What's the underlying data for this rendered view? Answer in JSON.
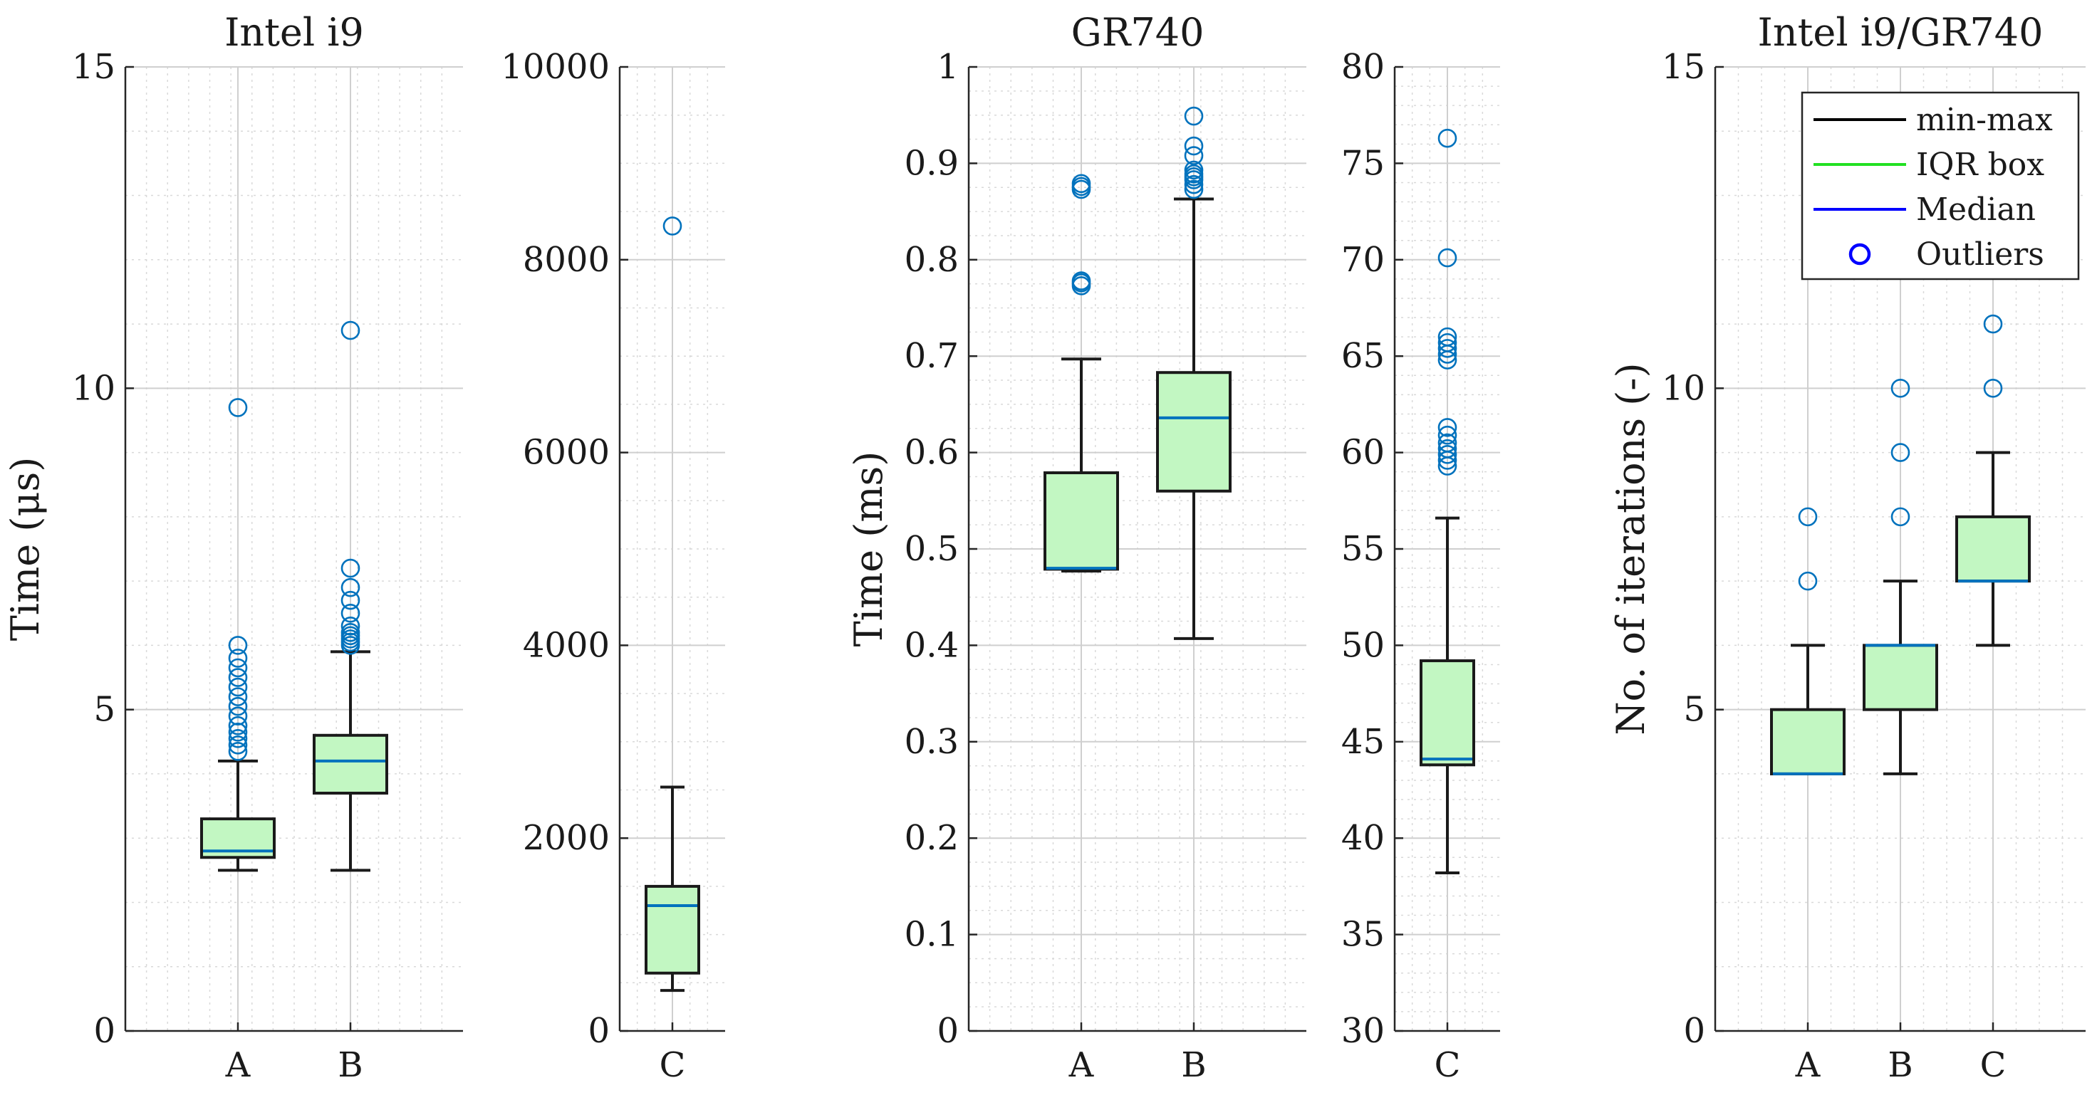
{
  "colors": {
    "box_fill": "#c2f7c2",
    "box_edge": "#1a1a1a",
    "whisker": "#1a1a1a",
    "median": "#0072bd",
    "outlier": "#0072bd",
    "grid": "#d9d9d9",
    "axis": "#262626",
    "legend_minmax": "#000000",
    "legend_iqr": "#22e022",
    "legend_median": "#0000ff",
    "legend_outlier": "#0000ff"
  },
  "chart_data": [
    {
      "type": "box",
      "title": "Intel i9",
      "ylabel": "Time (μs)",
      "ylim": [
        0,
        15
      ],
      "yticks": [
        "0",
        "5",
        "10",
        "15"
      ],
      "categories": [
        "A",
        "B"
      ],
      "boxes": [
        {
          "category": "A",
          "min": 2.5,
          "q1": 2.7,
          "median": 2.8,
          "q3": 3.3,
          "max": 4.2,
          "outliers": [
            4.35,
            4.45,
            4.55,
            4.65,
            4.75,
            4.9,
            5.05,
            5.2,
            5.35,
            5.5,
            5.65,
            5.8,
            6.0,
            9.7
          ]
        },
        {
          "category": "B",
          "min": 2.5,
          "q1": 3.7,
          "median": 4.2,
          "q3": 4.6,
          "max": 5.9,
          "outliers": [
            6.0,
            6.05,
            6.1,
            6.15,
            6.2,
            6.3,
            6.5,
            6.7,
            6.9,
            7.2,
            10.9
          ]
        }
      ]
    },
    {
      "type": "box",
      "title": "",
      "ylabel": "",
      "ylim": [
        0,
        10000
      ],
      "yticks": [
        "0",
        "2000",
        "4000",
        "6000",
        "8000",
        "10000"
      ],
      "categories": [
        "C"
      ],
      "boxes": [
        {
          "category": "C",
          "min": 420,
          "q1": 600,
          "median": 1300,
          "q3": 1500,
          "max": 2530,
          "outliers": [
            8350
          ]
        }
      ]
    },
    {
      "type": "box",
      "title": "GR740",
      "ylabel": "Time (ms)",
      "ylim": [
        0,
        1
      ],
      "yticks": [
        "0",
        "0.1",
        "0.2",
        "0.3",
        "0.4",
        "0.5",
        "0.6",
        "0.7",
        "0.8",
        "0.9",
        "1"
      ],
      "categories": [
        "A",
        "B"
      ],
      "boxes": [
        {
          "category": "A",
          "min": 0.477,
          "q1": 0.479,
          "median": 0.48,
          "q3": 0.579,
          "max": 0.697,
          "outliers": [
            0.773,
            0.776,
            0.778,
            0.873,
            0.876,
            0.879
          ]
        },
        {
          "category": "B",
          "min": 0.407,
          "q1": 0.56,
          "median": 0.636,
          "q3": 0.683,
          "max": 0.863,
          "outliers": [
            0.873,
            0.878,
            0.883,
            0.886,
            0.889,
            0.893,
            0.908,
            0.918,
            0.949
          ]
        }
      ]
    },
    {
      "type": "box",
      "title": "",
      "ylabel": "",
      "ylim": [
        30,
        80
      ],
      "yticks": [
        "30",
        "35",
        "40",
        "45",
        "50",
        "55",
        "60",
        "65",
        "70",
        "75",
        "80"
      ],
      "categories": [
        "C"
      ],
      "boxes": [
        {
          "category": "C",
          "min": 38.2,
          "q1": 43.8,
          "median": 44.1,
          "q3": 49.2,
          "max": 56.6,
          "outliers": [
            59.3,
            59.6,
            59.9,
            60.2,
            60.5,
            60.9,
            61.3,
            64.8,
            65.1,
            65.4,
            65.7,
            66.0,
            70.1,
            76.3
          ]
        }
      ]
    },
    {
      "type": "box",
      "title": "Intel i9/GR740",
      "ylabel": "No. of iterations (-)",
      "ylim": [
        0,
        15
      ],
      "yticks": [
        "0",
        "5",
        "10",
        "15"
      ],
      "categories": [
        "A",
        "B",
        "C"
      ],
      "boxes": [
        {
          "category": "A",
          "min": 4,
          "q1": 4,
          "median": 4,
          "q3": 5,
          "max": 6,
          "outliers": [
            7,
            8
          ]
        },
        {
          "category": "B",
          "min": 4,
          "q1": 5,
          "median": 6,
          "q3": 6,
          "max": 7,
          "outliers": [
            8,
            9,
            10
          ]
        },
        {
          "category": "C",
          "min": 6,
          "q1": 7,
          "median": 7,
          "q3": 8,
          "max": 9,
          "outliers": [
            10,
            11
          ]
        }
      ],
      "legend": {
        "position": "top-right",
        "entries": [
          {
            "label": "min-max",
            "kind": "line",
            "color_key": "legend_minmax"
          },
          {
            "label": "IQR box",
            "kind": "line",
            "color_key": "legend_iqr"
          },
          {
            "label": "Median",
            "kind": "line",
            "color_key": "legend_median"
          },
          {
            "label": "Outliers",
            "kind": "marker",
            "color_key": "legend_outlier"
          }
        ]
      }
    }
  ]
}
